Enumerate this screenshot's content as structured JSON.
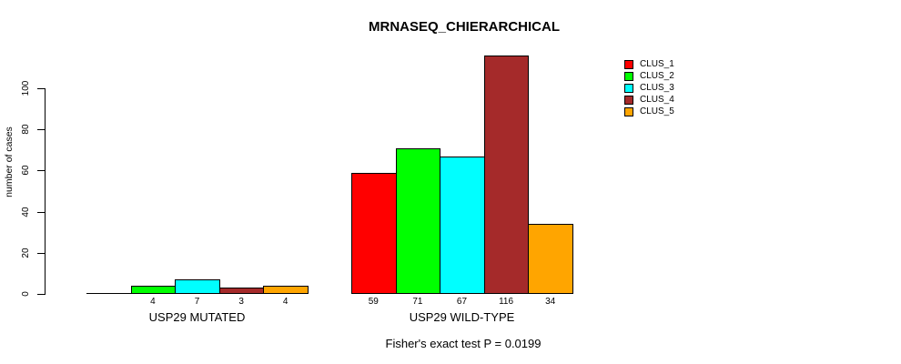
{
  "chart_data": {
    "type": "bar",
    "title": "MRNASEQ_CHIERARCHICAL",
    "ylabel": "number of cases",
    "footnote": "Fisher's exact test P = 0.0199",
    "categories": [
      "USP29 MUTATED",
      "USP29 WILD-TYPE"
    ],
    "series": [
      {
        "name": "CLUS_1",
        "color": "#FF0000",
        "values": [
          0,
          59
        ],
        "value_labels": [
          "",
          "59"
        ]
      },
      {
        "name": "CLUS_2",
        "color": "#00FF00",
        "values": [
          4,
          71
        ],
        "value_labels": [
          "4",
          "71"
        ]
      },
      {
        "name": "CLUS_3",
        "color": "#00FFFF",
        "values": [
          7,
          67
        ],
        "value_labels": [
          "7",
          "67"
        ]
      },
      {
        "name": "CLUS_4",
        "color": "#A52A2A",
        "values": [
          3,
          116
        ],
        "value_labels": [
          "3",
          "116"
        ]
      },
      {
        "name": "CLUS_5",
        "color": "#FFA500",
        "values": [
          4,
          34
        ],
        "value_labels": [
          "4",
          "34"
        ]
      }
    ],
    "y_ticks": [
      0,
      20,
      40,
      60,
      80,
      100
    ],
    "ylim": [
      0,
      120
    ],
    "grid": false,
    "legend": {
      "position": "top-right",
      "entries": [
        "CLUS_1",
        "CLUS_2",
        "CLUS_3",
        "CLUS_4",
        "CLUS_5"
      ]
    },
    "axis_color": "#000000",
    "background": "#FFFFFF"
  }
}
